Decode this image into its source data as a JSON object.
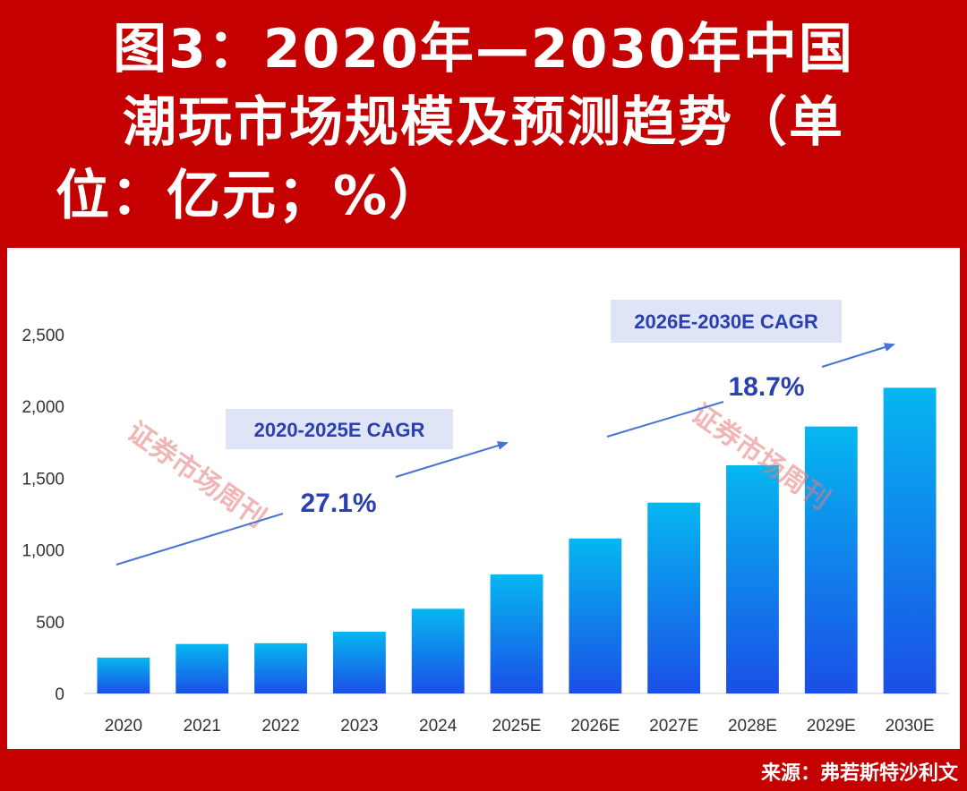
{
  "header": {
    "title_line1": "图3：2020年—2030年中国",
    "title_line2": "潮玩市场规模及预测趋势（单",
    "title_line3": "位：亿元；%）"
  },
  "footer": {
    "source": "来源：弗若斯特沙利文"
  },
  "watermark": "证券市场周刊",
  "colors": {
    "background": "#c40000",
    "bar_top": "#06b7f0",
    "bar_bottom": "#1a4fe6",
    "arrow": "#4a72d8",
    "annotation_text": "#2a3fb0",
    "label_box": "#dfe4f7"
  },
  "chart_data": {
    "type": "bar",
    "categories": [
      "2020",
      "2021",
      "2022",
      "2023",
      "2024",
      "2025E",
      "2026E",
      "2027E",
      "2028E",
      "2029E",
      "2030E"
    ],
    "values": [
      250,
      345,
      350,
      430,
      590,
      830,
      1080,
      1330,
      1590,
      1860,
      2130
    ],
    "ylim": [
      0,
      2500
    ],
    "yticks": [
      "0",
      "500",
      "1,000",
      "1,500",
      "2,000",
      "2,500"
    ],
    "ytick_values": [
      0,
      500,
      1000,
      1500,
      2000,
      2500
    ],
    "grid": false,
    "annotations": [
      {
        "label": "2020-2025E CAGR",
        "value": "27.1%"
      },
      {
        "label": "2026E-2030E CAGR",
        "value": "18.7%"
      }
    ]
  }
}
